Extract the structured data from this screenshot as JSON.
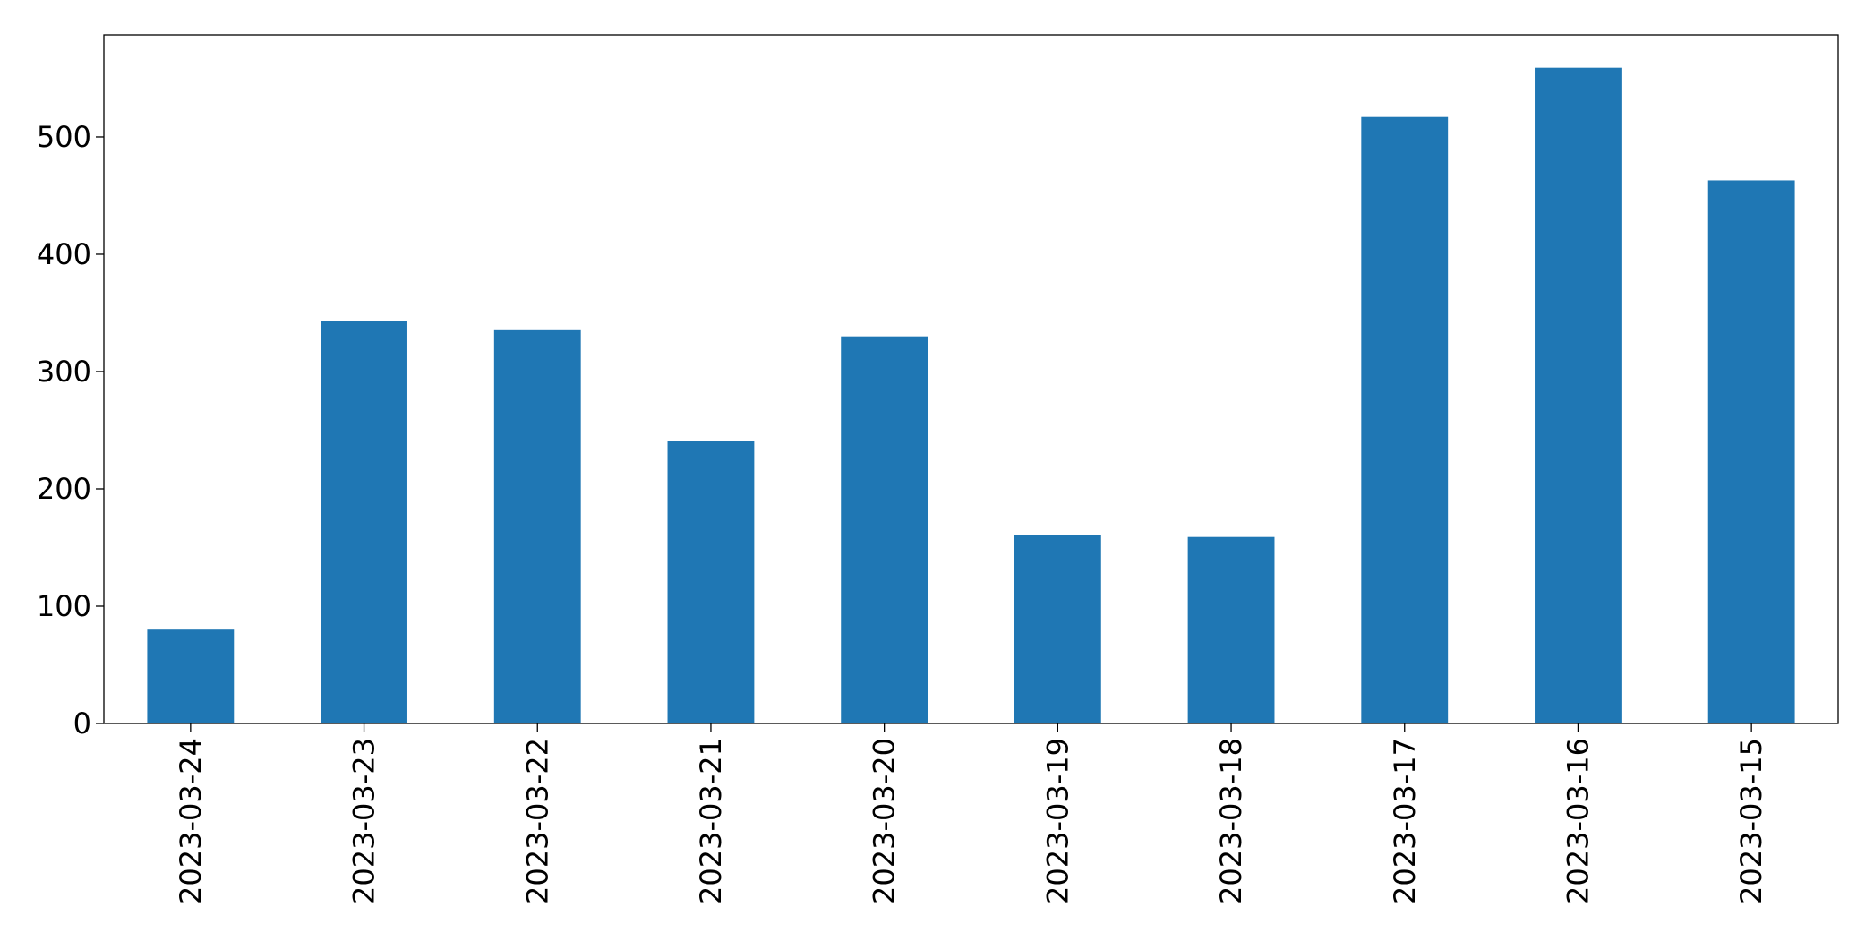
{
  "chart_data": {
    "type": "bar",
    "categories": [
      "2023-03-24",
      "2023-03-23",
      "2023-03-22",
      "2023-03-21",
      "2023-03-20",
      "2023-03-19",
      "2023-03-18",
      "2023-03-17",
      "2023-03-16",
      "2023-03-15"
    ],
    "values": [
      80,
      343,
      336,
      241,
      330,
      161,
      159,
      517,
      559,
      463
    ],
    "color": "#1f77b4",
    "ylim": [
      0,
      587
    ],
    "yticks": [
      0,
      100,
      200,
      300,
      400,
      500
    ],
    "grid": false
  }
}
